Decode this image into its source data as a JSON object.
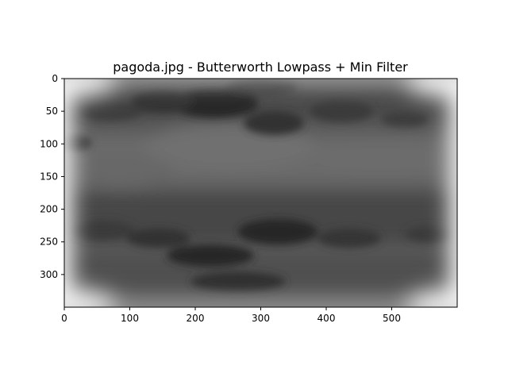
{
  "title": "pagoda.jpg - Butterworth Lowpass + Min Filter",
  "image": {
    "width": 600,
    "height": 350,
    "colormap": "gray",
    "content": "blurred-grayscale-image"
  },
  "x_axis": {
    "ticks": [
      0,
      100,
      200,
      300,
      400,
      500
    ],
    "range": [
      0,
      600
    ]
  },
  "y_axis": {
    "ticks": [
      0,
      50,
      100,
      150,
      200,
      250,
      300
    ],
    "range": [
      0,
      350
    ],
    "inverted": true
  }
}
